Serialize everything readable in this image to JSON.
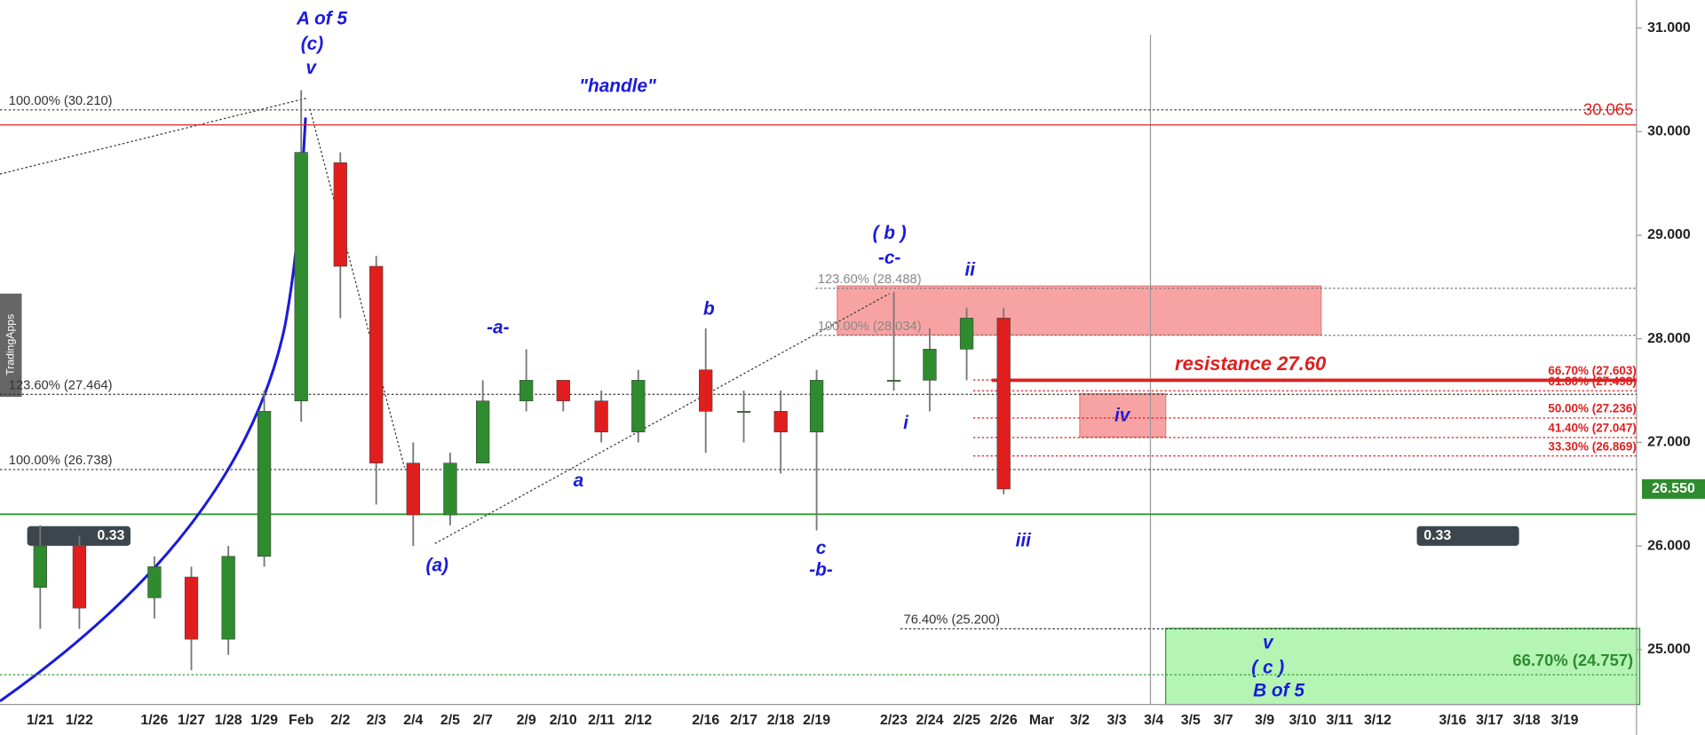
{
  "chart_data": {
    "type": "candlestick",
    "categories": [
      "1/21",
      "1/22",
      "1/26",
      "1/27",
      "1/28",
      "1/29",
      "Feb",
      "2/2",
      "2/3",
      "2/4",
      "2/5",
      "2/7",
      "2/9",
      "2/10",
      "2/11",
      "2/12",
      "2/16",
      "2/17",
      "2/18",
      "2/19",
      "2/23",
      "2/24",
      "2/25",
      "2/26",
      "Mar",
      "3/2",
      "3/3",
      "3/4",
      "3/5",
      "3/7",
      "3/9",
      "3/10",
      "3/11",
      "3/12",
      "3/16",
      "3/17",
      "3/18",
      "3/19"
    ],
    "open": [
      25.6,
      26.0,
      25.5,
      25.7,
      25.1,
      25.9,
      27.4,
      29.7,
      28.7,
      26.8,
      26.3,
      26.8,
      27.4,
      27.6,
      27.4,
      27.1,
      27.7,
      27.3,
      27.3,
      27.1,
      27.6,
      27.6,
      27.9,
      28.2,
      null,
      null,
      null,
      null,
      null,
      null,
      null,
      null,
      null,
      null,
      null,
      null,
      null,
      null
    ],
    "high": [
      26.2,
      26.1,
      25.9,
      25.8,
      26.0,
      27.5,
      30.4,
      29.8,
      28.8,
      27.0,
      26.9,
      27.6,
      27.9,
      27.6,
      27.5,
      27.7,
      28.1,
      27.5,
      27.5,
      27.7,
      28.45,
      28.1,
      28.3,
      28.3,
      null,
      null,
      null,
      null,
      null,
      null,
      null,
      null,
      null,
      null,
      null,
      null,
      null,
      null
    ],
    "low": [
      25.2,
      25.2,
      25.3,
      24.8,
      24.95,
      25.8,
      27.2,
      28.2,
      26.4,
      26.0,
      26.2,
      26.8,
      27.3,
      27.3,
      27.0,
      27.0,
      26.9,
      27.0,
      26.7,
      26.15,
      27.5,
      27.3,
      27.6,
      26.5,
      null,
      null,
      null,
      null,
      null,
      null,
      null,
      null,
      null,
      null,
      null,
      null,
      null,
      null
    ],
    "close": [
      26.0,
      25.4,
      25.8,
      25.1,
      25.9,
      27.3,
      29.8,
      28.7,
      26.8,
      26.3,
      26.8,
      27.4,
      27.6,
      27.4,
      27.1,
      27.6,
      27.3,
      27.3,
      27.1,
      27.6,
      27.6,
      27.9,
      28.2,
      26.55,
      null,
      null,
      null,
      null,
      null,
      null,
      null,
      null,
      null,
      null,
      null,
      null,
      null,
      null
    ],
    "up_color": "#2e8b2e",
    "down_color": "#e01e1e",
    "ylim": [
      24.47,
      31.27
    ],
    "yticks": [
      {
        "value": 25,
        "label": "25.000"
      },
      {
        "value": 26,
        "label": "26.000"
      },
      {
        "value": 27,
        "label": "27.000"
      },
      {
        "value": 28,
        "label": "28.000"
      },
      {
        "value": 29,
        "label": "29.000"
      },
      {
        "value": 30,
        "label": "30.000"
      },
      {
        "value": 31,
        "label": "31.000"
      }
    ],
    "last_price": {
      "value": 26.55,
      "label": "26.550"
    },
    "levels": [
      {
        "label": "100.00% (30.210)",
        "value": 30.21
      },
      {
        "label": "123.60% (27.464)",
        "value": 27.464
      },
      {
        "label": "100.00% (26.738)",
        "value": 26.738
      },
      {
        "label": "123.60% (28.488)",
        "value": 28.488
      },
      {
        "label": "100.00% (28.034)",
        "value": 28.034
      },
      {
        "label": "76.40% (25.200)",
        "value": 25.2
      },
      {
        "label": "66.70% (27.603)",
        "value": 27.603
      },
      {
        "label": "61.80% (27.498)",
        "value": 27.498
      },
      {
        "label": "50.00% (27.236)",
        "value": 27.236
      },
      {
        "label": "41.40% (27.047)",
        "value": 27.047
      },
      {
        "label": "33.30% (26.869)",
        "value": 26.869
      },
      {
        "label": "66.70% (24.757)",
        "value": 24.757
      },
      {
        "label": "30.065",
        "value": 30.065
      },
      {
        "label": "resistance 27.60",
        "value": 27.6
      }
    ],
    "annotations": [
      "A of 5",
      "(c)",
      "v",
      "\"handle\"",
      "-a-",
      "a",
      "(a)",
      "b",
      "( b )",
      "-c-",
      "c",
      "-b-",
      "ii",
      "i",
      "iv",
      "iii",
      "v",
      "( c )",
      "B of 5"
    ],
    "badges": [
      "0.33",
      "0.33"
    ],
    "watermark": "TradingApps"
  }
}
